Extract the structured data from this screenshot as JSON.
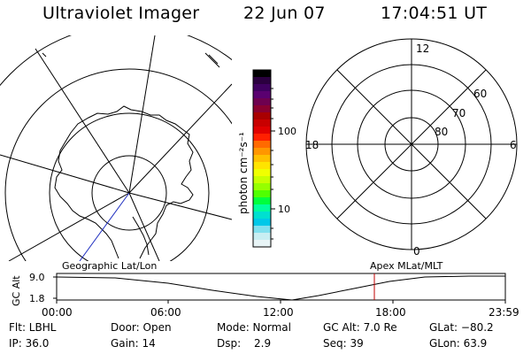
{
  "header": {
    "instrument": "Ultraviolet Imager",
    "date": "22 Jun 07",
    "time": "17:04:51 UT"
  },
  "colorbar": {
    "unit_label": "photon cm⁻²s⁻¹",
    "ticks": [
      "100",
      "10"
    ],
    "colors": [
      "#000000",
      "#2b003f",
      "#3f0060",
      "#5a0070",
      "#6e0050",
      "#8a0030",
      "#a80000",
      "#c80000",
      "#e00000",
      "#ff2000",
      "#ff6a00",
      "#ff9600",
      "#ffc000",
      "#ffe400",
      "#f0ff00",
      "#c8ff00",
      "#96ff00",
      "#50ff00",
      "#00ff3c",
      "#00ff9c",
      "#00e0d0",
      "#00c8e8",
      "#80e0ee",
      "#c8eef2",
      "#e8f4f6"
    ]
  },
  "left_panel": {
    "label": "Geographic Lat/Lon"
  },
  "right_panel": {
    "label": "Apex MLat/MLT",
    "mlt_labels": {
      "top": "12",
      "left": "18",
      "right": "6",
      "bottom": "0"
    },
    "lat_labels": [
      "60",
      "70",
      "80"
    ]
  },
  "altitude_plot": {
    "ylabel": "GC Alt",
    "yticks": [
      "9.0",
      "1.8"
    ],
    "xticks": [
      "00:00",
      "06:00",
      "12:00",
      "18:00",
      "23:59"
    ],
    "marker_time": "17:04:51",
    "marker_color": "#c00000"
  },
  "info": {
    "row1": [
      "Flt: LBHL",
      "Door: Open",
      "Mode: Normal",
      "GC Alt: 7.0 Re",
      "GLat: −80.2"
    ],
    "row2": [
      "IP: 36.0",
      "Gain: 14",
      "Dsp:",
      "2.9",
      "Seq: 39",
      "GLon: 63.9"
    ]
  }
}
